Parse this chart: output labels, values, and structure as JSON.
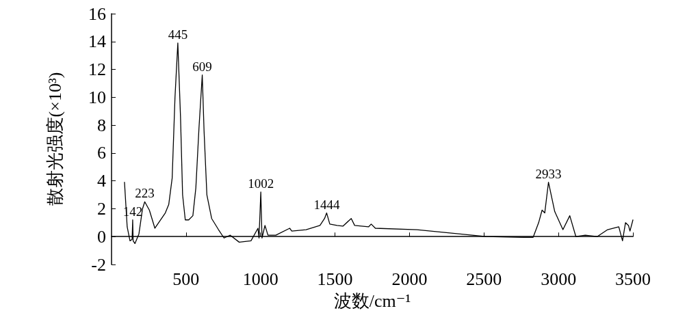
{
  "chart_data": {
    "type": "line",
    "xlabel": "波数/cm⁻¹",
    "ylabel": "散射光强度(×10³)",
    "xlim": [
      0,
      3500
    ],
    "xticks": [
      500,
      1000,
      1500,
      2000,
      2500,
      3000,
      3500
    ],
    "ylim": [
      -2,
      16
    ],
    "yticks": [
      -2,
      0,
      2,
      4,
      6,
      8,
      10,
      12,
      14,
      16
    ],
    "marker": "none",
    "line_style": "solid",
    "x": [
      87,
      105,
      124,
      138,
      142,
      145,
      157,
      184,
      208,
      223,
      254,
      291,
      361,
      384,
      407,
      426,
      445,
      463,
      477,
      495,
      518,
      546,
      566,
      587,
      609,
      621,
      640,
      672,
      718,
      755,
      797,
      857,
      936,
      983,
      990,
      1002,
      1010,
      1030,
      1050,
      1103,
      1196,
      1210,
      1306,
      1399,
      1430,
      1444,
      1465,
      1514,
      1553,
      1609,
      1632,
      1725,
      1743,
      1771,
      2050,
      2514,
      2760,
      2830,
      2867,
      2890,
      2908,
      2933,
      2975,
      3030,
      3076,
      3117,
      3180,
      3260,
      3330,
      3405,
      3430,
      3450,
      3470,
      3480,
      3500
    ],
    "series": [
      {
        "color": "#000000",
        "values": [
          3.9,
          0.7,
          -0.3,
          -0.2,
          1.2,
          -0.3,
          -0.5,
          0.2,
          2.0,
          2.5,
          1.9,
          0.6,
          1.7,
          2.3,
          4.2,
          10,
          13.9,
          8.6,
          3.0,
          1.2,
          1.2,
          1.5,
          3.5,
          7.8,
          11.6,
          7.6,
          3.0,
          1.3,
          0.5,
          -0.1,
          0.1,
          -0.4,
          -0.3,
          0.6,
          -0.1,
          3.2,
          -0.1,
          0.8,
          0.1,
          0.1,
          0.6,
          0.4,
          0.5,
          0.8,
          1.3,
          1.7,
          0.9,
          0.8,
          0.75,
          1.3,
          0.8,
          0.7,
          0.9,
          0.6,
          0.5,
          0,
          -0.05,
          -0.05,
          1.0,
          1.9,
          1.7,
          3.9,
          1.8,
          0.5,
          1.5,
          0,
          0.1,
          0,
          0.5,
          0.7,
          -0.3,
          1.0,
          0.8,
          0.4,
          1.2
        ]
      }
    ],
    "annotations": [
      {
        "text": "142",
        "x": 142,
        "y": 1.2
      },
      {
        "text": "223",
        "x": 223,
        "y": 2.5
      },
      {
        "text": "445",
        "x": 445,
        "y": 13.9
      },
      {
        "text": "609",
        "x": 609,
        "y": 11.6
      },
      {
        "text": "1002",
        "x": 1002,
        "y": 3.2
      },
      {
        "text": "1444",
        "x": 1444,
        "y": 1.7
      },
      {
        "text": "2933",
        "x": 2933,
        "y": 3.9
      }
    ]
  }
}
